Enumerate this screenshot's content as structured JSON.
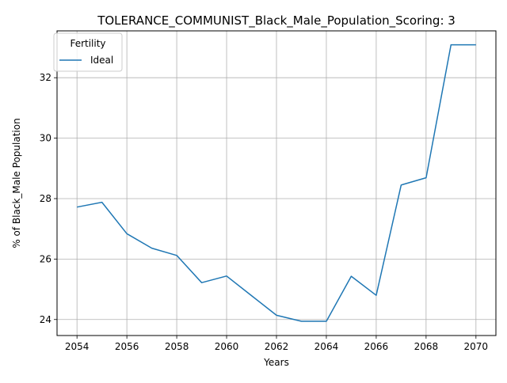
{
  "chart_data": {
    "type": "line",
    "title": "TOLERANCE_COMMUNIST_Black_Male_Population_Scoring: 3",
    "xlabel": "Years",
    "ylabel": "% of Black_Male Population",
    "xlim": [
      2053.2,
      2070.8
    ],
    "ylim": [
      23.47,
      33.55
    ],
    "xticks": [
      2054,
      2056,
      2058,
      2060,
      2062,
      2064,
      2066,
      2068,
      2070
    ],
    "yticks": [
      24,
      26,
      28,
      30,
      32
    ],
    "grid": true,
    "legend": {
      "title": "Fertility",
      "placement": "top-left"
    },
    "series": [
      {
        "name": "Ideal",
        "color": "#1f77b4",
        "x": [
          2054,
          2055,
          2056,
          2057,
          2058,
          2059,
          2060,
          2061,
          2062,
          2063,
          2064,
          2065,
          2066,
          2067,
          2068,
          2069,
          2070
        ],
        "values": [
          27.72,
          27.88,
          26.84,
          26.36,
          26.12,
          25.22,
          25.44,
          24.79,
          24.14,
          23.94,
          23.94,
          25.43,
          24.8,
          28.45,
          28.69,
          33.09,
          33.09
        ]
      }
    ]
  }
}
